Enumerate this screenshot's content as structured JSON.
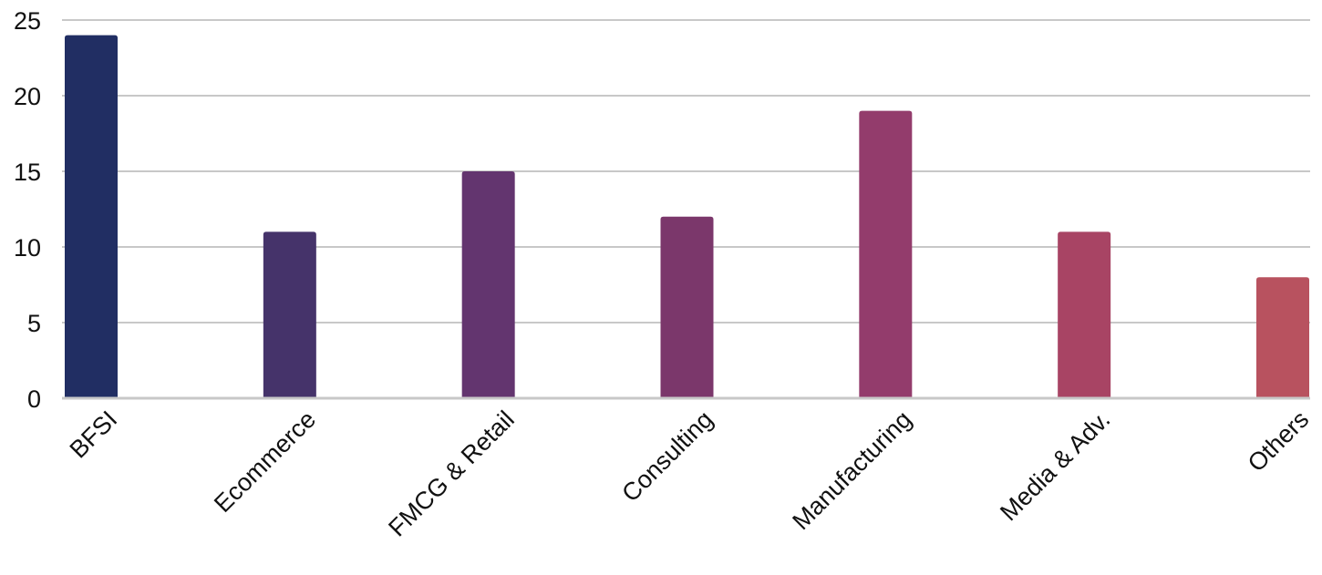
{
  "chart_data": {
    "type": "bar",
    "title": "",
    "xlabel": "",
    "ylabel": "",
    "categories": [
      "BFSI",
      "Ecommerce",
      "FMCG & Retail",
      "Consulting",
      "Manufacturing",
      "Media & Adv.",
      "Others"
    ],
    "values": [
      24,
      11,
      15,
      12,
      19,
      11,
      8
    ],
    "colors": [
      "#212e63",
      "#45336a",
      "#63356f",
      "#7b376b",
      "#933c6c",
      "#a84464",
      "#b8525f"
    ],
    "ylim": [
      0,
      25
    ],
    "yticks": [
      0,
      5,
      10,
      15,
      20,
      25
    ],
    "ytick_labels": [
      "0",
      "5",
      "10",
      "15",
      "20",
      "25"
    ],
    "grid": true,
    "legend": "none",
    "gridline_color": "#c8c8c8"
  }
}
